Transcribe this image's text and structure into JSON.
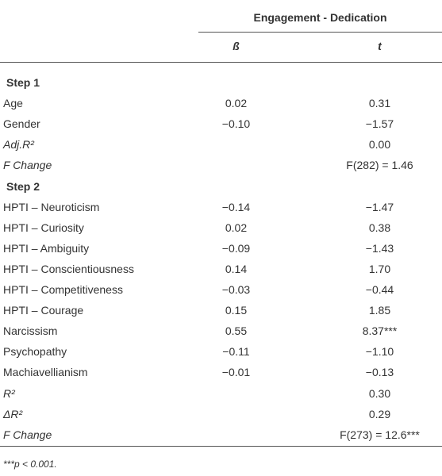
{
  "header": {
    "group_title": "Engagement - Dedication",
    "columns": [
      "ß",
      "t"
    ]
  },
  "table": {
    "rows": [
      {
        "label": "Step 1",
        "section": true
      },
      {
        "label": "Age",
        "beta": "0.02",
        "t": "0.31"
      },
      {
        "label": "Gender",
        "beta": "−0.10",
        "t": "−1.57"
      },
      {
        "label": "Adj.R²",
        "t": "0.00",
        "italic": true
      },
      {
        "label": "F Change",
        "t": "F(282) = 1.46",
        "italic": true
      },
      {
        "label": "Step 2",
        "section": true
      },
      {
        "label": "HPTI – Neuroticism",
        "beta": "−0.14",
        "t": "−1.47"
      },
      {
        "label": "HPTI – Curiosity",
        "beta": "0.02",
        "t": "0.38"
      },
      {
        "label": "HPTI – Ambiguity",
        "beta": "−0.09",
        "t": "−1.43"
      },
      {
        "label": "HPTI – Conscientiousness",
        "beta": "0.14",
        "t": "1.70"
      },
      {
        "label": "HPTI – Competitiveness",
        "beta": "−0.03",
        "t": "−0.44"
      },
      {
        "label": "HPTI – Courage",
        "beta": "0.15",
        "t": "1.85"
      },
      {
        "label": "Narcissism",
        "beta": "0.55",
        "t": "8.37***"
      },
      {
        "label": "Psychopathy",
        "beta": "−0.11",
        "t": "−1.10"
      },
      {
        "label": "Machiavellianism",
        "beta": "−0.01",
        "t": "−0.13"
      },
      {
        "label": "R²",
        "t": "0.30",
        "italic": true
      },
      {
        "label": "ΔR²",
        "t": "0.29",
        "italic": true
      },
      {
        "label": "F Change",
        "t": "F(273) = 12.6***",
        "italic": true
      }
    ]
  },
  "footnote": "***p < 0.001."
}
